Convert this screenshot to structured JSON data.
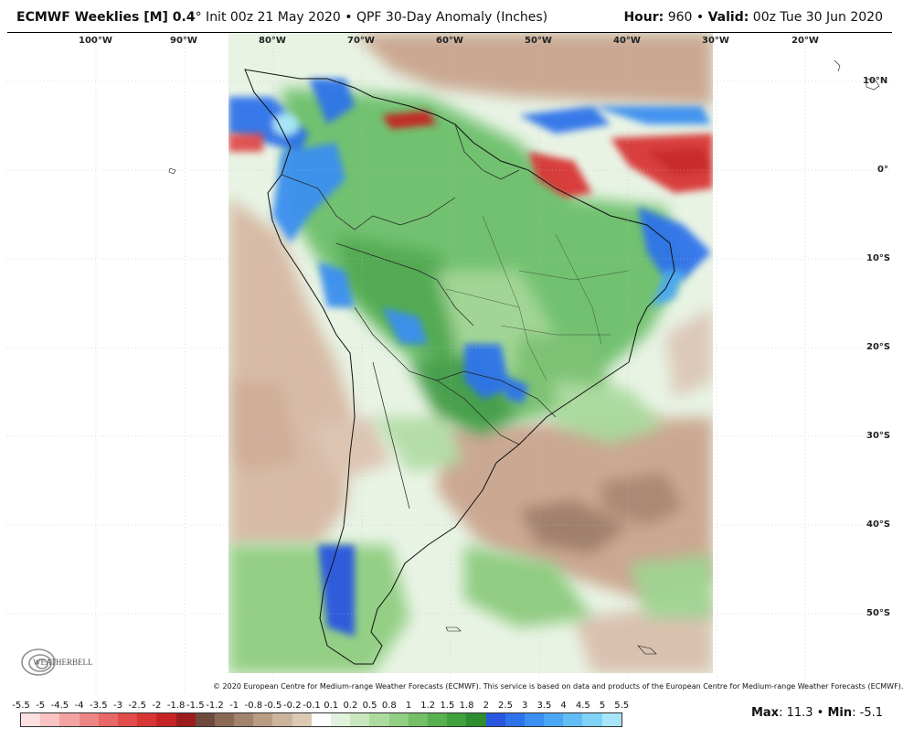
{
  "header": {
    "title_bold": "ECMWF Weeklies [M] 0.4",
    "title_degree": "°",
    "title_rest": " Init 00z 21 May 2020 • QPF 30-Day Anomaly (Inches)",
    "hour_label": "Hour:",
    "hour_value": " 960 • ",
    "valid_label": "Valid:",
    "valid_value": " 00z Tue 30 Jun 2020"
  },
  "map": {
    "longitude_labels": [
      "100°W",
      "90°W",
      "80°W",
      "70°W",
      "60°W",
      "50°W",
      "40°W",
      "30°W",
      "20°W"
    ],
    "latitude_labels": [
      "10°N",
      "0°",
      "10°S",
      "20°S",
      "30°S",
      "40°S",
      "50°S"
    ]
  },
  "copyright": "© 2020 European Centre for Medium-range Weather Forecasts (ECMWF). This service is based on data and products of the European Centre for Medium-range Weather Forecasts (ECMWF).",
  "logo": {
    "text": "WEATHERBELL",
    "icon": "weatherbell-swirl-icon"
  },
  "colorbar": {
    "labels": [
      "-5.5",
      "-5",
      "-4.5",
      "-4",
      "-3.5",
      "-3",
      "-2.5",
      "-2",
      "-1.8",
      "-1.5",
      "-1.2",
      "-1",
      "-0.8",
      "-0.5",
      "-0.2",
      "-0.1",
      "0.1",
      "0.2",
      "0.5",
      "0.8",
      "1",
      "1.2",
      "1.5",
      "1.8",
      "2",
      "2.5",
      "3",
      "3.5",
      "4",
      "4.5",
      "5",
      "5.5"
    ],
    "colors": [
      "#fde0e0",
      "#f9c3c3",
      "#f4a3a3",
      "#ee8585",
      "#e86767",
      "#e04c4c",
      "#d83535",
      "#c62424",
      "#9c1d1d",
      "#6e4a3c",
      "#8a6a55",
      "#a2836b",
      "#b99c84",
      "#ccb39c",
      "#dcc9b4",
      "#ffffff",
      "#e2f2dc",
      "#c8e7be",
      "#addb9f",
      "#91cf82",
      "#74c067",
      "#58b150",
      "#3fa03c",
      "#2d8d30",
      "#2a56e0",
      "#2f73ea",
      "#3a8ff0",
      "#4aa7f3",
      "#63bdf5",
      "#80d2f7",
      "#a7e6fa"
    ]
  },
  "max_label": "Max",
  "max_value": ": 11.3 • ",
  "min_label": "Min",
  "min_value": ": -5.1"
}
